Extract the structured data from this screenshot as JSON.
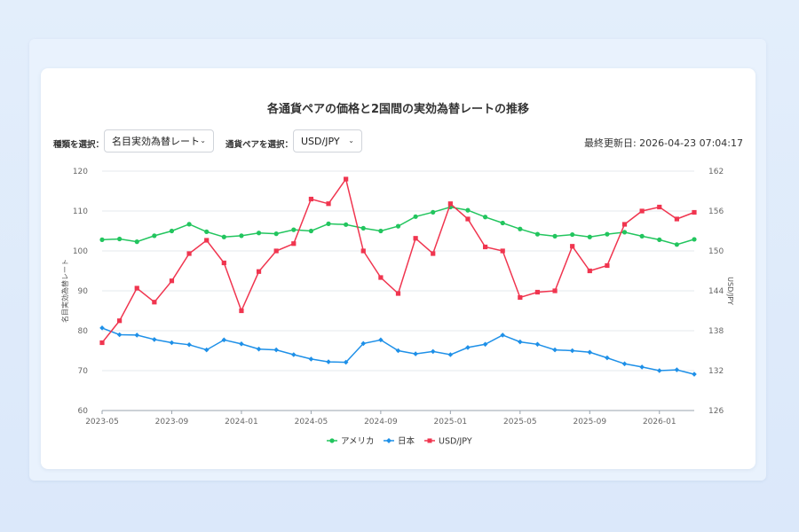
{
  "page": {
    "title": "各通貨ペアの価格と2国間の実効為替レートの推移",
    "last_updated_label": "最終更新日: 2026-04-23 07:04:17"
  },
  "controls": {
    "type_label": "種類を選択：",
    "type_value": "名目実効為替レート",
    "pair_label": "通貨ペアを選択：",
    "pair_value": "USD/JPY"
  },
  "chart_data": {
    "type": "line",
    "y_left_label": "名目実効為替レート",
    "y_right_label": "USD/JPY",
    "y_left_lim": [
      60,
      120
    ],
    "y_left_ticks": [
      60,
      70,
      80,
      90,
      100,
      110,
      120
    ],
    "y_right_lim": [
      126,
      162
    ],
    "y_right_ticks": [
      126,
      132,
      138,
      144,
      150,
      156,
      162
    ],
    "x_start": "2023-05",
    "x_ticks": [
      "2023-05",
      "2023-09",
      "2024-01",
      "2024-05",
      "2024-09",
      "2025-01",
      "2025-05",
      "2025-09",
      "2026-01"
    ],
    "grid": true,
    "legend_position": "bottom",
    "series": [
      {
        "name": "アメリカ",
        "axis": "left",
        "color": "#22c55e",
        "marker": "circle",
        "values": [
          102.8,
          103.0,
          102.3,
          103.8,
          105.0,
          106.7,
          104.8,
          103.5,
          103.8,
          104.5,
          104.3,
          105.3,
          105.0,
          106.8,
          106.6,
          105.7,
          105.0,
          106.2,
          108.6,
          109.7,
          111.0,
          110.2,
          108.5,
          107.0,
          105.5,
          104.2,
          103.7,
          104.1,
          103.5,
          104.2,
          104.7,
          103.7,
          102.8,
          101.6,
          102.9
        ]
      },
      {
        "name": "日本",
        "axis": "left",
        "color": "#1e90e8",
        "marker": "diamond",
        "values": [
          80.7,
          79.0,
          78.9,
          77.8,
          77.0,
          76.5,
          75.2,
          77.7,
          76.7,
          75.4,
          75.2,
          74.0,
          72.9,
          72.2,
          72.1,
          76.8,
          77.7,
          75.0,
          74.2,
          74.8,
          74.0,
          75.8,
          76.6,
          78.9,
          77.2,
          76.6,
          75.2,
          75.0,
          74.6,
          73.2,
          71.7,
          70.9,
          70.0,
          70.2,
          69.1
        ]
      },
      {
        "name": "USD/JPY",
        "axis": "right",
        "color": "#f0354f",
        "marker": "square",
        "values": [
          136.2,
          139.5,
          144.4,
          142.3,
          145.5,
          149.6,
          151.6,
          148.2,
          141.0,
          146.9,
          150.0,
          151.1,
          157.8,
          157.1,
          160.8,
          150.0,
          146.0,
          143.6,
          151.9,
          149.6,
          157.1,
          154.8,
          150.6,
          150.0,
          143.0,
          143.8,
          144.0,
          150.7,
          147.0,
          147.8,
          154.0,
          156.0,
          156.6,
          154.8,
          155.8
        ]
      }
    ]
  }
}
